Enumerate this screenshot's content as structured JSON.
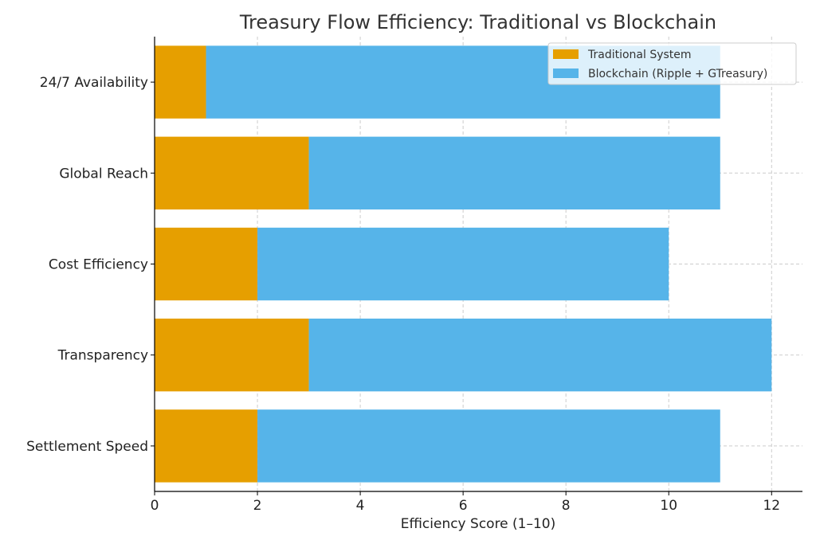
{
  "chart_data": {
    "type": "bar",
    "orientation": "horizontal",
    "stacked": true,
    "title": "Treasury Flow Efficiency: Traditional vs Blockchain",
    "xlabel": "Efficiency Score (1–10)",
    "ylabel": "",
    "categories": [
      "Settlement Speed",
      "Transparency",
      "Cost Efficiency",
      "Global Reach",
      "24/7 Availability"
    ],
    "series": [
      {
        "name": "Traditional System",
        "color": "#E69F00",
        "values": [
          2,
          3,
          2,
          3,
          1
        ]
      },
      {
        "name": "Blockchain (Ripple + GTreasury)",
        "color": "#56B4E9",
        "values": [
          9,
          9,
          8,
          8,
          10
        ]
      }
    ],
    "xlim": [
      0,
      12.6
    ],
    "xticks": [
      0,
      2,
      4,
      6,
      8,
      10,
      12
    ],
    "grid": true,
    "legend_position": "top-right"
  }
}
